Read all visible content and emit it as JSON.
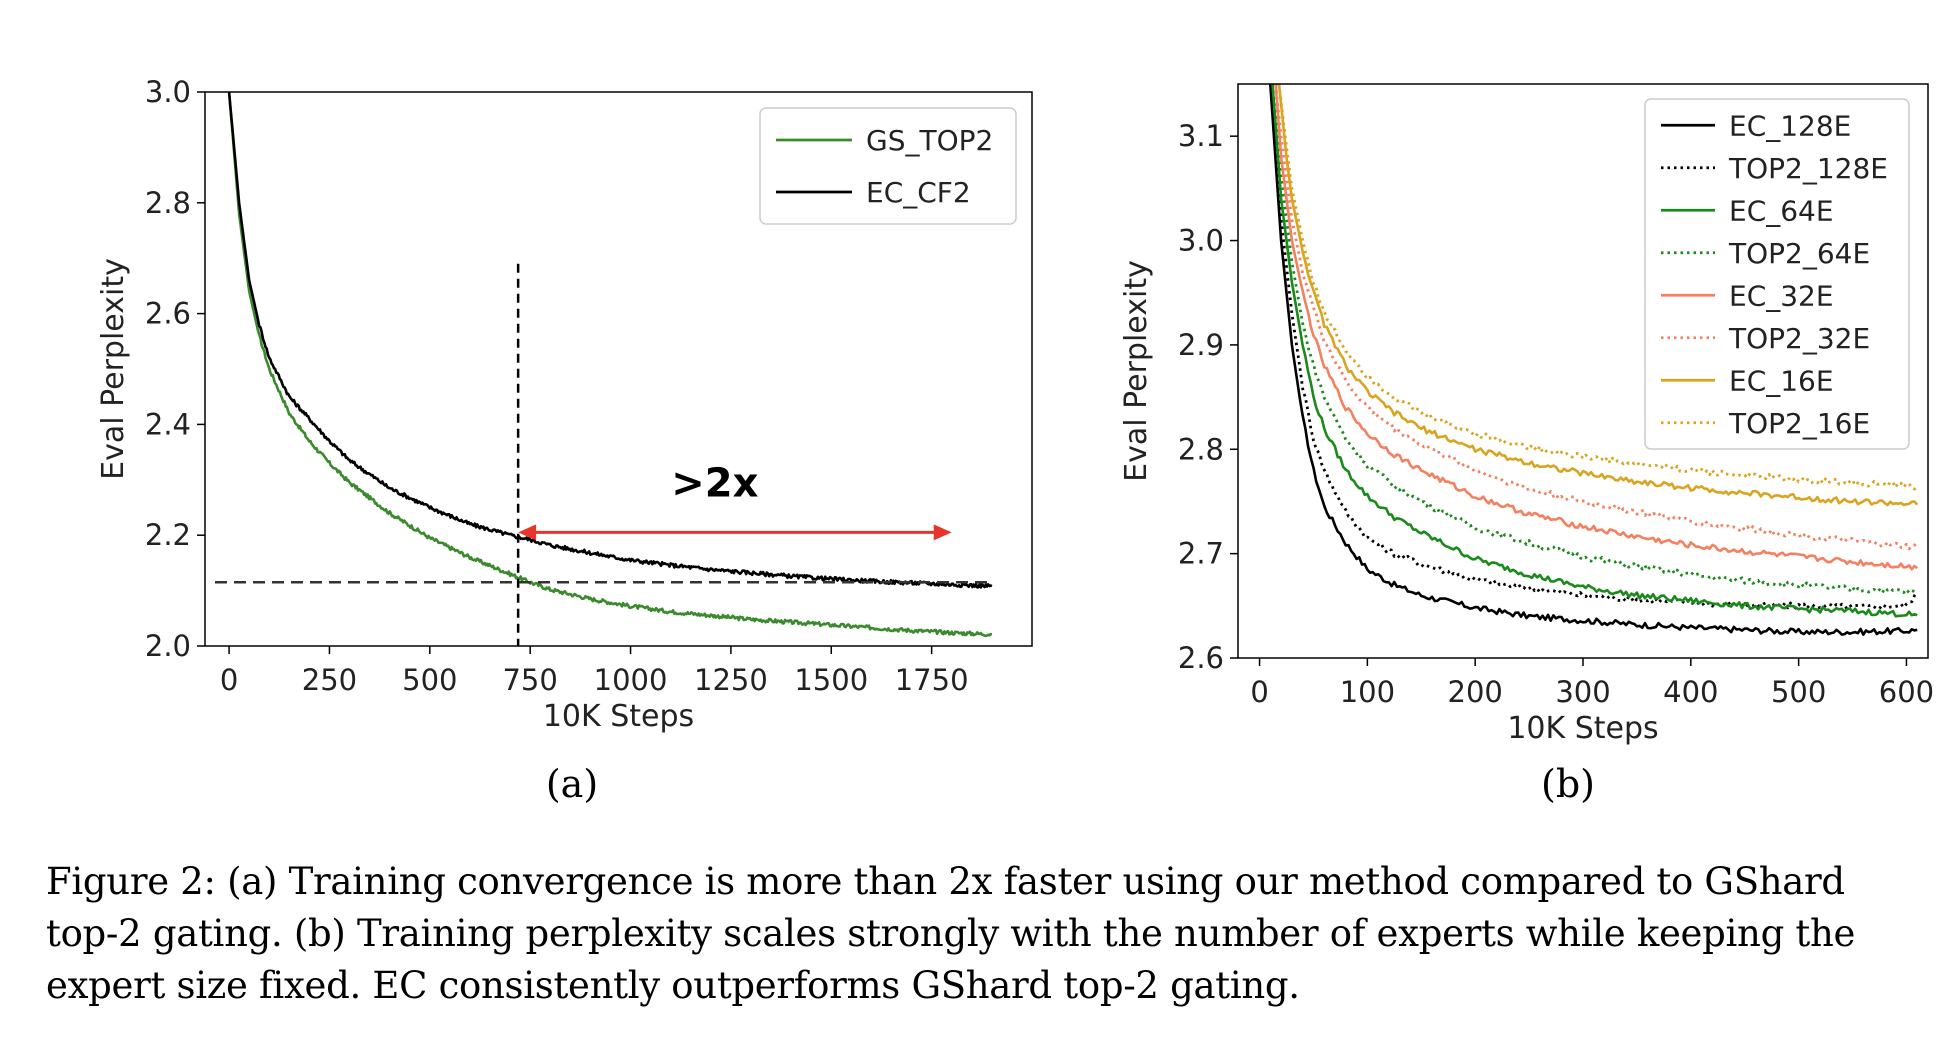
{
  "caption": "Figure 2: (a) Training convergence is more than 2x faster using our method compared to GShard top-2 gating. (b) Training perplexity scales strongly with the number of experts while keeping the expert size fixed. EC consistently outperforms GShard top-2 gating.",
  "colors": {
    "black": "#000000",
    "green": "#2f8a2f",
    "green_a": "#3b8a2e",
    "salmon": "#f4805f",
    "gold": "#d9a520",
    "red": "#e8352c"
  },
  "chart_data": [
    {
      "type": "line",
      "sublabel": "(a)",
      "xlabel": "10K Steps",
      "ylabel": "Eval Perplexity",
      "xlim": [
        -60,
        2000
      ],
      "ylim": [
        2.0,
        3.0
      ],
      "xticks": [
        0,
        250,
        500,
        750,
        1000,
        1250,
        1500,
        1750
      ],
      "yticks": [
        2.0,
        2.2,
        2.4,
        2.6,
        2.8,
        3.0
      ],
      "ytick_labels": [
        "2.0",
        "2.2",
        "2.4",
        "2.6",
        "2.8",
        "3.0"
      ],
      "legend_position": "top-right",
      "grid": false,
      "annotations": {
        "text": ">2x",
        "vline_x": 720,
        "hline_y": 2.115,
        "arrow_from": [
          720,
          2.205
        ],
        "arrow_to": [
          1800,
          2.205
        ]
      },
      "series": [
        {
          "name": "GS_TOP2",
          "style": "solid",
          "color": "#3b8a2e",
          "x": [
            0,
            25,
            50,
            75,
            100,
            150,
            200,
            250,
            300,
            400,
            500,
            600,
            700,
            750,
            800,
            900,
            1000,
            1100,
            1200,
            1300,
            1400,
            1500,
            1600,
            1700,
            1800,
            1900
          ],
          "y": [
            3.0,
            2.78,
            2.64,
            2.56,
            2.5,
            2.42,
            2.37,
            2.33,
            2.295,
            2.24,
            2.195,
            2.16,
            2.13,
            2.115,
            2.102,
            2.085,
            2.072,
            2.062,
            2.055,
            2.048,
            2.043,
            2.038,
            2.033,
            2.028,
            2.024,
            2.021
          ]
        },
        {
          "name": "EC_CF2",
          "style": "solid",
          "color": "#000000",
          "x": [
            0,
            25,
            50,
            75,
            100,
            150,
            200,
            250,
            300,
            400,
            500,
            600,
            700,
            750,
            800,
            900,
            1000,
            1100,
            1200,
            1300,
            1400,
            1500,
            1600,
            1700,
            1800,
            1900
          ],
          "y": [
            3.0,
            2.8,
            2.66,
            2.58,
            2.52,
            2.45,
            2.41,
            2.37,
            2.335,
            2.285,
            2.25,
            2.22,
            2.2,
            2.192,
            2.182,
            2.168,
            2.155,
            2.146,
            2.138,
            2.132,
            2.126,
            2.121,
            2.117,
            2.114,
            2.111,
            2.108
          ]
        }
      ]
    },
    {
      "type": "line",
      "sublabel": "(b)",
      "xlabel": "10K Steps",
      "ylabel": "Eval Perplexity",
      "xlim": [
        -20,
        620
      ],
      "ylim": [
        2.6,
        3.15
      ],
      "xticks": [
        0,
        100,
        200,
        300,
        400,
        500,
        600
      ],
      "yticks": [
        2.6,
        2.7,
        2.8,
        2.9,
        3.0,
        3.1
      ],
      "ytick_labels": [
        "2.6",
        "2.7",
        "2.8",
        "2.9",
        "3.0",
        "3.1"
      ],
      "legend_position": "top-right",
      "grid": false,
      "series": [
        {
          "name": "EC_128E",
          "style": "solid",
          "color": "#000000",
          "x": [
            10,
            20,
            30,
            40,
            50,
            60,
            80,
            100,
            125,
            150,
            200,
            250,
            300,
            350,
            400,
            450,
            500,
            550,
            600,
            610
          ],
          "y": [
            3.15,
            3.0,
            2.9,
            2.83,
            2.78,
            2.745,
            2.71,
            2.685,
            2.67,
            2.66,
            2.648,
            2.64,
            2.636,
            2.632,
            2.629,
            2.627,
            2.625,
            2.625,
            2.626,
            2.627
          ]
        },
        {
          "name": "TOP2_128E",
          "style": "dotted",
          "color": "#000000",
          "x": [
            10,
            20,
            30,
            40,
            50,
            60,
            80,
            100,
            125,
            150,
            200,
            250,
            300,
            350,
            400,
            450,
            500,
            550,
            600,
            610
          ],
          "y": [
            3.15,
            3.02,
            2.93,
            2.86,
            2.81,
            2.78,
            2.74,
            2.715,
            2.7,
            2.69,
            2.675,
            2.667,
            2.66,
            2.656,
            2.653,
            2.651,
            2.65,
            2.649,
            2.65,
            2.663
          ]
        },
        {
          "name": "EC_64E",
          "style": "solid",
          "color": "#1a8a1a",
          "x": [
            12,
            20,
            30,
            40,
            50,
            60,
            80,
            100,
            125,
            150,
            200,
            250,
            300,
            350,
            400,
            450,
            500,
            550,
            600,
            610
          ],
          "y": [
            3.15,
            3.04,
            2.96,
            2.9,
            2.85,
            2.82,
            2.78,
            2.755,
            2.735,
            2.72,
            2.695,
            2.68,
            2.668,
            2.66,
            2.655,
            2.65,
            2.647,
            2.645,
            2.642,
            2.641
          ]
        },
        {
          "name": "TOP2_64E",
          "style": "dotted",
          "color": "#1a8a1a",
          "x": [
            12,
            20,
            30,
            40,
            50,
            60,
            80,
            100,
            125,
            150,
            200,
            250,
            300,
            350,
            400,
            450,
            500,
            550,
            600,
            610
          ],
          "y": [
            3.15,
            3.06,
            2.98,
            2.92,
            2.88,
            2.85,
            2.81,
            2.785,
            2.765,
            2.75,
            2.725,
            2.71,
            2.697,
            2.688,
            2.68,
            2.674,
            2.67,
            2.666,
            2.664,
            2.662
          ]
        },
        {
          "name": "EC_32E",
          "style": "solid",
          "color": "#f4805f",
          "x": [
            15,
            20,
            30,
            40,
            50,
            60,
            80,
            100,
            125,
            150,
            200,
            250,
            300,
            350,
            400,
            450,
            500,
            550,
            600,
            610
          ],
          "y": [
            3.15,
            3.08,
            3.0,
            2.95,
            2.91,
            2.88,
            2.84,
            2.815,
            2.795,
            2.78,
            2.755,
            2.738,
            2.726,
            2.716,
            2.708,
            2.702,
            2.697,
            2.692,
            2.688,
            2.686
          ]
        },
        {
          "name": "TOP2_32E",
          "style": "dotted",
          "color": "#f4805f",
          "x": [
            15,
            20,
            30,
            40,
            50,
            60,
            80,
            100,
            125,
            150,
            200,
            250,
            300,
            350,
            400,
            450,
            500,
            550,
            600,
            610
          ],
          "y": [
            3.15,
            3.1,
            3.02,
            2.97,
            2.935,
            2.905,
            2.865,
            2.84,
            2.82,
            2.805,
            2.78,
            2.762,
            2.75,
            2.74,
            2.731,
            2.724,
            2.718,
            2.712,
            2.707,
            2.706
          ]
        },
        {
          "name": "EC_16E",
          "style": "solid",
          "color": "#d9a520",
          "x": [
            18,
            25,
            30,
            40,
            50,
            60,
            80,
            100,
            125,
            150,
            200,
            250,
            300,
            350,
            400,
            450,
            500,
            550,
            600,
            610
          ],
          "y": [
            3.15,
            3.08,
            3.04,
            2.99,
            2.95,
            2.92,
            2.88,
            2.855,
            2.835,
            2.82,
            2.8,
            2.787,
            2.777,
            2.769,
            2.763,
            2.758,
            2.754,
            2.75,
            2.748,
            2.747
          ]
        },
        {
          "name": "TOP2_16E",
          "style": "dotted",
          "color": "#d9a520",
          "x": [
            18,
            25,
            30,
            40,
            50,
            60,
            80,
            100,
            125,
            150,
            200,
            250,
            300,
            350,
            400,
            450,
            500,
            550,
            600,
            610
          ],
          "y": [
            3.15,
            3.09,
            3.05,
            3.0,
            2.96,
            2.93,
            2.895,
            2.87,
            2.85,
            2.835,
            2.815,
            2.802,
            2.793,
            2.786,
            2.78,
            2.775,
            2.771,
            2.768,
            2.765,
            2.764
          ]
        }
      ]
    }
  ]
}
